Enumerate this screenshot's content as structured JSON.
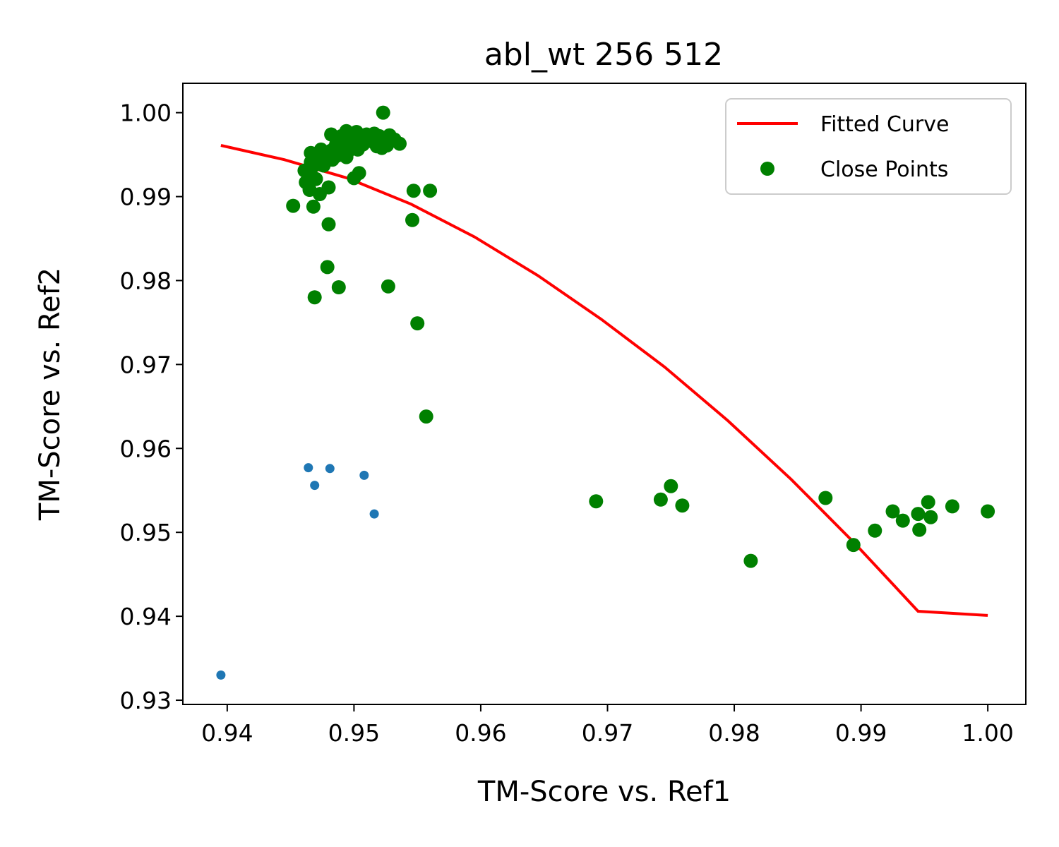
{
  "chart_data": {
    "type": "scatter",
    "title": "abl_wt 256 512",
    "xlabel": "TM-Score vs. Ref1",
    "ylabel": "TM-Score vs. Ref2",
    "xlim": [
      0.9365,
      1.003
    ],
    "ylim": [
      0.9295,
      1.0035
    ],
    "x_ticks": [
      0.94,
      0.95,
      0.96,
      0.97,
      0.98,
      0.99,
      1.0
    ],
    "x_tick_labels": [
      "0.94",
      "0.95",
      "0.96",
      "0.97",
      "0.98",
      "0.99",
      "1.00"
    ],
    "y_ticks": [
      0.93,
      0.94,
      0.95,
      0.96,
      0.97,
      0.98,
      0.99,
      1.0
    ],
    "y_tick_labels": [
      "0.93",
      "0.94",
      "0.95",
      "0.96",
      "0.97",
      "0.98",
      "0.99",
      "1.00"
    ],
    "grid": false,
    "legend_position": "top-right",
    "series": [
      {
        "name": "Fitted Curve",
        "kind": "line",
        "color": "#ff0000",
        "x": [
          0.9395,
          0.9445,
          0.9495,
          0.9545,
          0.9595,
          0.9645,
          0.9695,
          0.9745,
          0.9795,
          0.9845,
          0.9895,
          0.9945,
          1.0
        ],
        "y": [
          0.9961,
          0.9944,
          0.9922,
          0.9891,
          0.9852,
          0.9806,
          0.9754,
          0.9697,
          0.9633,
          0.9563,
          0.9487,
          0.9406,
          0.9401
        ]
      },
      {
        "name": "Close Points",
        "kind": "scatter",
        "color": "#008000",
        "x": [
          0.9452,
          0.9462,
          0.9465,
          0.9468,
          0.947,
          0.9473,
          0.9476,
          0.948,
          0.9483,
          0.9486,
          0.949,
          0.9494,
          0.9497,
          0.95,
          0.9503,
          0.9507,
          0.9512,
          0.9516,
          0.952,
          0.9524,
          0.9528,
          0.9532,
          0.9536,
          0.9466,
          0.947,
          0.9474,
          0.9478,
          0.9482,
          0.9486,
          0.949,
          0.9494,
          0.9498,
          0.9502,
          0.9506,
          0.951,
          0.9514,
          0.9518,
          0.9522,
          0.9526,
          0.9463,
          0.9466,
          0.9469,
          0.9472,
          0.9475,
          0.9478,
          0.9481,
          0.9484,
          0.9487,
          0.9491,
          0.9495,
          0.95,
          0.9503,
          0.9523,
          0.9461,
          0.9477,
          0.9467,
          0.9481,
          0.95,
          0.9504,
          0.9547,
          0.956,
          0.9546,
          0.948,
          0.9479,
          0.9488,
          0.9527,
          0.9469,
          0.955,
          0.9557,
          0.9691,
          0.9742,
          0.975,
          0.9759,
          0.9813,
          0.9872,
          0.9894,
          0.9911,
          0.9925,
          0.9933,
          0.9945,
          0.9946,
          0.9953,
          0.9955,
          0.9972,
          1.0
        ],
        "y": [
          0.9889,
          0.9917,
          0.9908,
          0.9888,
          0.9921,
          0.9903,
          0.9937,
          0.9911,
          0.9944,
          0.9952,
          0.9961,
          0.9947,
          0.9966,
          0.9971,
          0.9956,
          0.9962,
          0.9969,
          0.9975,
          0.9972,
          0.9966,
          0.9973,
          0.9968,
          0.9963,
          0.9952,
          0.9948,
          0.9956,
          0.995,
          0.9974,
          0.9963,
          0.9972,
          0.9978,
          0.9969,
          0.9977,
          0.9965,
          0.9974,
          0.9966,
          0.996,
          0.9958,
          0.9961,
          0.9932,
          0.9941,
          0.9938,
          0.9945,
          0.9951,
          0.9942,
          0.9954,
          0.9957,
          0.9949,
          0.9958,
          0.9953,
          0.9961,
          0.9967,
          1.0,
          0.9931,
          0.9945,
          0.9935,
          0.9951,
          0.9922,
          0.9928,
          0.9907,
          0.9907,
          0.9872,
          0.9867,
          0.9816,
          0.9792,
          0.9793,
          0.978,
          0.9749,
          0.9638,
          0.9537,
          0.9539,
          0.9555,
          0.9532,
          0.9466,
          0.9541,
          0.9485,
          0.9502,
          0.9525,
          0.9514,
          0.9522,
          0.9503,
          0.9536,
          0.9518,
          0.9531,
          0.9525
        ]
      },
      {
        "name": "",
        "kind": "scatter",
        "color": "#1f77b4",
        "x": [
          0.9464,
          0.9469,
          0.9481,
          0.9508,
          0.9516,
          0.9395
        ],
        "y": [
          0.9577,
          0.9556,
          0.9576,
          0.9568,
          0.9522,
          0.933
        ]
      }
    ]
  }
}
